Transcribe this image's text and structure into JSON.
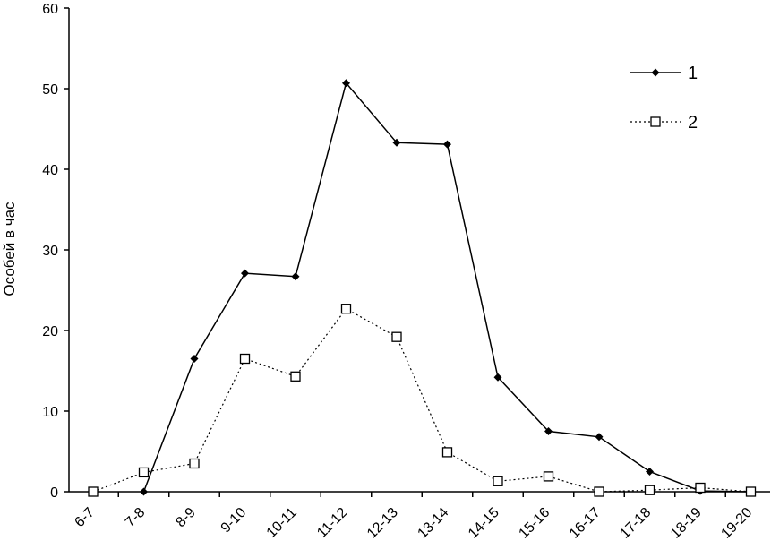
{
  "chart_data": {
    "type": "line",
    "title": "",
    "xlabel": "",
    "ylabel": "Особей в час",
    "ylim": [
      0,
      60
    ],
    "yticks": [
      0,
      10,
      20,
      30,
      40,
      50,
      60
    ],
    "grid": false,
    "legend": "top-right",
    "categories": [
      "6-7",
      "7-8",
      "8-9",
      "9-10",
      "10-11",
      "11-12",
      "12-13",
      "13-14",
      "14-15",
      "15-16",
      "16-17",
      "17-18",
      "18-19",
      "19-20"
    ],
    "series": [
      {
        "name": "1",
        "style": "solid-diamond",
        "color": "#000000",
        "values": [
          null,
          0,
          16.5,
          27.1,
          26.7,
          50.7,
          43.3,
          43.1,
          14.2,
          7.5,
          6.8,
          2.5,
          0.1,
          0
        ]
      },
      {
        "name": "2",
        "style": "dotted-square",
        "color": "#000000",
        "values": [
          0,
          2.4,
          3.5,
          16.5,
          14.3,
          22.7,
          19.2,
          4.9,
          1.3,
          1.9,
          0,
          0.2,
          0.5,
          0
        ]
      }
    ]
  }
}
